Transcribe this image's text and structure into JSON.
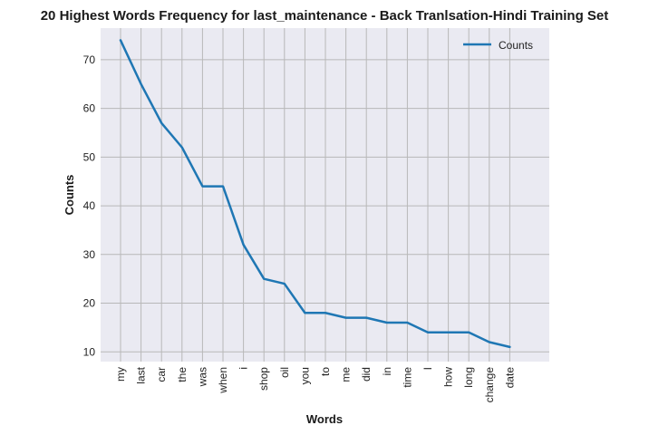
{
  "chart_data": {
    "type": "line",
    "title": "20 Highest Words Frequency for last_maintenance - Back Tranlsation-Hindi Training Set",
    "xlabel": "Words",
    "ylabel": "Counts",
    "categories": [
      "my",
      "last",
      "car",
      "the",
      "was",
      "when",
      "i",
      "shop",
      "oil",
      "you",
      "to",
      "me",
      "did",
      "in",
      "time",
      "I",
      "how",
      "long",
      "change",
      "date"
    ],
    "series": [
      {
        "name": "Counts",
        "values": [
          74,
          65,
          57,
          52,
          44,
          44,
          32,
          25,
          24,
          18,
          18,
          17,
          17,
          16,
          16,
          14,
          14,
          14,
          12,
          11
        ]
      }
    ],
    "yticks": [
      10,
      20,
      30,
      40,
      50,
      60,
      70
    ],
    "ylim": [
      8,
      76.5
    ],
    "grid": true,
    "legend_position": "top-right",
    "colors": {
      "line": "#1f77b4",
      "plot_bg": "#eaeaf2",
      "grid": "#b8b8b8"
    }
  }
}
